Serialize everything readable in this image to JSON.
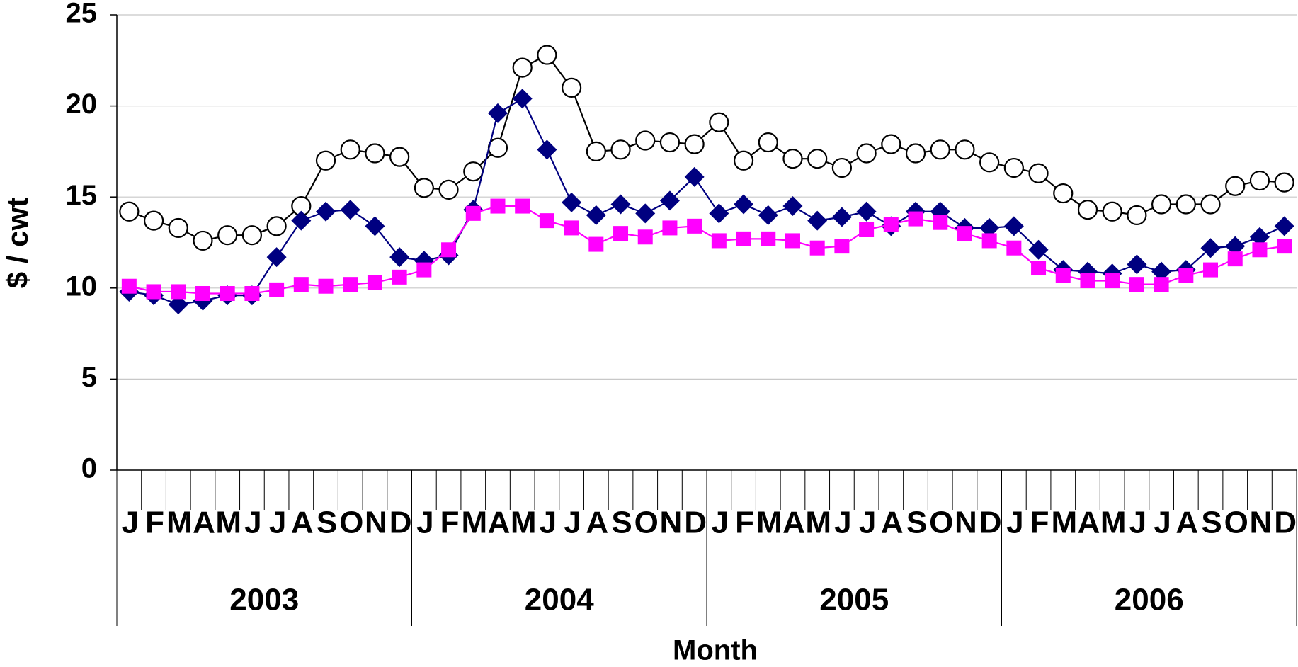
{
  "chart_data": {
    "type": "line",
    "y_label": "$ / cwt",
    "x_label": "Month",
    "categories": [
      "J",
      "F",
      "M",
      "A",
      "M",
      "J",
      "J",
      "A",
      "S",
      "O",
      "N",
      "D",
      "J",
      "F",
      "M",
      "A",
      "M",
      "J",
      "J",
      "A",
      "S",
      "O",
      "N",
      "D",
      "J",
      "F",
      "M",
      "A",
      "M",
      "J",
      "J",
      "A",
      "S",
      "O",
      "N",
      "D",
      "J",
      "F",
      "M",
      "A",
      "M",
      "J",
      "J",
      "A",
      "S",
      "O",
      "N",
      "D"
    ],
    "years": [
      "2003",
      "2004",
      "2005",
      "2006"
    ],
    "ylim": [
      0,
      25
    ],
    "yticks": [
      0,
      5,
      10,
      15,
      20,
      25
    ],
    "grid": true,
    "series": [
      {
        "color": "#000000",
        "marker": "circle",
        "marker_fill": "#ffffff",
        "values": [
          14.2,
          13.7,
          13.3,
          12.6,
          12.9,
          12.9,
          13.4,
          14.5,
          17.0,
          17.6,
          17.4,
          17.2,
          15.5,
          15.4,
          16.4,
          17.7,
          22.1,
          22.8,
          21.0,
          17.5,
          17.6,
          18.1,
          18.0,
          17.9,
          19.1,
          17.0,
          18.0,
          17.1,
          17.1,
          16.6,
          17.4,
          17.9,
          17.4,
          17.6,
          17.6,
          16.9,
          16.6,
          16.3,
          15.2,
          14.3,
          14.2,
          14.0,
          14.6,
          14.6,
          14.6,
          15.6,
          15.9,
          15.8
        ]
      },
      {
        "color": "#000080",
        "marker": "diamond",
        "marker_fill": "#000080",
        "values": [
          9.8,
          9.6,
          9.1,
          9.3,
          9.6,
          9.6,
          11.7,
          13.7,
          14.2,
          14.3,
          13.4,
          11.7,
          11.5,
          11.8,
          14.3,
          19.6,
          20.4,
          17.6,
          14.7,
          14.0,
          14.6,
          14.1,
          14.8,
          16.1,
          14.1,
          14.6,
          14.0,
          14.5,
          13.7,
          13.9,
          14.2,
          13.4,
          14.2,
          14.2,
          13.3,
          13.3,
          13.4,
          12.1,
          11.0,
          10.9,
          10.8,
          11.3,
          10.9,
          11.0,
          12.2,
          12.3,
          12.8,
          13.4
        ]
      },
      {
        "color": "#ff00ff",
        "marker": "square",
        "marker_fill": "#ff00ff",
        "values": [
          10.1,
          9.8,
          9.8,
          9.7,
          9.7,
          9.7,
          9.9,
          10.2,
          10.1,
          10.2,
          10.3,
          10.6,
          11.0,
          12.1,
          14.1,
          14.5,
          14.5,
          13.7,
          13.3,
          12.4,
          13.0,
          12.8,
          13.3,
          13.4,
          12.6,
          12.7,
          12.7,
          12.6,
          12.2,
          12.3,
          13.2,
          13.5,
          13.8,
          13.6,
          13.0,
          12.6,
          12.2,
          11.1,
          10.7,
          10.4,
          10.4,
          10.2,
          10.2,
          10.7,
          11.0,
          11.6,
          12.1,
          12.3
        ]
      }
    ]
  }
}
